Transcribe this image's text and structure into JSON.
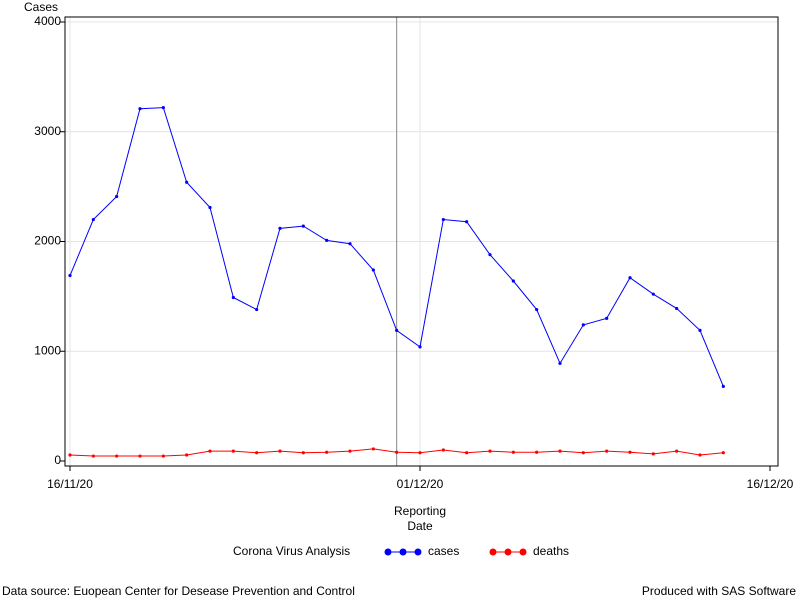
{
  "chart_data": {
    "type": "line",
    "y_label": "Cases",
    "x_label": "Reporting Date",
    "legend_title": "Corona Virus Analysis",
    "footnote_left": "Data source: Euopean Center for Desease Prevention and Control",
    "footnote_right": "Produced with SAS Software",
    "x": [
      "16/11/20",
      "17/11/20",
      "18/11/20",
      "19/11/20",
      "20/11/20",
      "21/11/20",
      "22/11/20",
      "23/11/20",
      "24/11/20",
      "25/11/20",
      "26/11/20",
      "27/11/20",
      "28/11/20",
      "29/11/20",
      "30/11/20",
      "01/12/20",
      "02/12/20",
      "03/12/20",
      "04/12/20",
      "05/12/20",
      "06/12/20",
      "07/12/20",
      "08/12/20",
      "09/12/20",
      "10/12/20",
      "11/12/20",
      "12/12/20",
      "13/12/20",
      "14/12/20"
    ],
    "series": [
      {
        "name": "cases",
        "color": "#0000ff",
        "values": [
          1690,
          2200,
          2410,
          3210,
          3220,
          2540,
          2310,
          1490,
          1380,
          2120,
          2140,
          2010,
          1980,
          1740,
          1190,
          1040,
          2200,
          2180,
          1880,
          1640,
          1380,
          890,
          1240,
          1300,
          1670,
          1520,
          1390,
          1190,
          680
        ]
      },
      {
        "name": "deaths",
        "color": "#ff0000",
        "values": [
          55,
          45,
          45,
          45,
          45,
          55,
          90,
          90,
          75,
          90,
          75,
          80,
          90,
          110,
          80,
          75,
          100,
          75,
          90,
          80,
          80,
          90,
          75,
          90,
          80,
          65,
          90,
          55,
          75
        ]
      }
    ],
    "xlim": [
      "16/11/20",
      "16/12/20"
    ],
    "xticks": [
      "16/11/20",
      "01/12/20",
      "16/12/20"
    ],
    "ylim": [
      0,
      4000
    ],
    "yticks": [
      0,
      1000,
      2000,
      3000,
      4000
    ],
    "reference_line_x": "30/11/20",
    "grid": true
  }
}
